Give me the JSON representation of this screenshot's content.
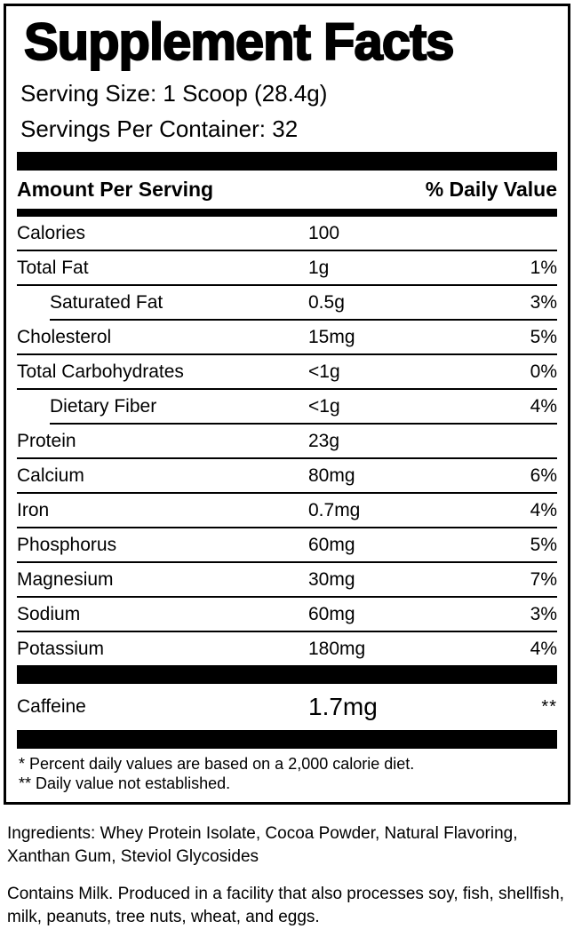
{
  "label": {
    "title": "Supplement Facts",
    "serving_size": "Serving Size: 1 Scoop (28.4g)",
    "servings_per_container": "Servings Per Container: 32",
    "header": {
      "amount": "Amount Per Serving",
      "daily_value": "% Daily Value"
    },
    "rows": [
      {
        "name": "Calories",
        "amount": "100",
        "dv": "",
        "indent": false
      },
      {
        "name": "Total Fat",
        "amount": "1g",
        "dv": "1%",
        "indent": false
      },
      {
        "name": "Saturated Fat",
        "amount": "0.5g",
        "dv": "3%",
        "indent": true
      },
      {
        "name": "Cholesterol",
        "amount": "15mg",
        "dv": "5%",
        "indent": false
      },
      {
        "name": "Total Carbohydrates",
        "amount": "<1g",
        "dv": "0%",
        "indent": false
      },
      {
        "name": "Dietary Fiber",
        "amount": "<1g",
        "dv": "4%",
        "indent": true
      },
      {
        "name": "Protein",
        "amount": "23g",
        "dv": "",
        "indent": false
      },
      {
        "name": "Calcium",
        "amount": "80mg",
        "dv": "6%",
        "indent": false
      },
      {
        "name": "Iron",
        "amount": "0.7mg",
        "dv": "4%",
        "indent": false
      },
      {
        "name": "Phosphorus",
        "amount": "60mg",
        "dv": "5%",
        "indent": false
      },
      {
        "name": "Magnesium",
        "amount": "30mg",
        "dv": "7%",
        "indent": false
      },
      {
        "name": "Sodium",
        "amount": "60mg",
        "dv": "3%",
        "indent": false
      },
      {
        "name": "Potassium",
        "amount": "180mg",
        "dv": "4%",
        "indent": false
      }
    ],
    "caffeine": {
      "name": "Caffeine",
      "amount": "1.7mg",
      "dv": "**"
    },
    "footnotes": [
      "* Percent daily values are based on a 2,000 calorie diet.",
      "** Daily value not established."
    ]
  },
  "below_label": {
    "ingredients": "Ingredients: Whey Protein Isolate, Cocoa Powder, Natural Flavoring, Xanthan Gum, Steviol Glycosides",
    "allergen": "Contains Milk. Produced in a facility that also processes soy, fish, shellfish, milk, peanuts, tree nuts, wheat, and eggs."
  },
  "colors": {
    "ink": "#000000",
    "background": "#ffffff"
  }
}
